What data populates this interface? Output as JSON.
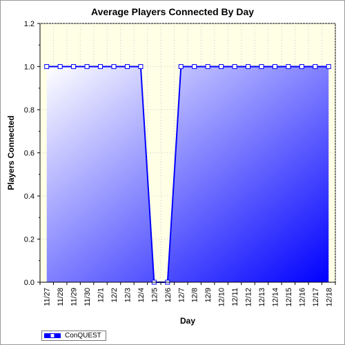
{
  "chart_data": {
    "type": "area",
    "title": "Average Players Connected By Day",
    "xlabel": "Day",
    "ylabel": "Players Connected",
    "categories": [
      "11/27",
      "11/28",
      "11/29",
      "11/30",
      "12/1",
      "12/2",
      "12/3",
      "12/4",
      "12/5",
      "12/6",
      "12/7",
      "12/8",
      "12/9",
      "12/10",
      "12/11",
      "12/12",
      "12/13",
      "12/14",
      "12/15",
      "12/16",
      "12/17",
      "12/18"
    ],
    "series": [
      {
        "name": "ConQUEST",
        "values": [
          1,
          1,
          1,
          1,
          1,
          1,
          1,
          1,
          0,
          0,
          1,
          1,
          1,
          1,
          1,
          1,
          1,
          1,
          1,
          1,
          1,
          1
        ]
      }
    ],
    "ylim": [
      0,
      1.2
    ],
    "yticks": [
      "0.0",
      "0.2",
      "0.4",
      "0.6",
      "0.8",
      "1.0",
      "1.2"
    ],
    "grid": true,
    "legend_position": "bottom-left",
    "colors": {
      "plot_background": "#ffffe6",
      "series_line": "#0000ff",
      "fill_start": "#ffffff",
      "fill_end": "#0000ff",
      "marker_fill": "#ffffff"
    }
  }
}
